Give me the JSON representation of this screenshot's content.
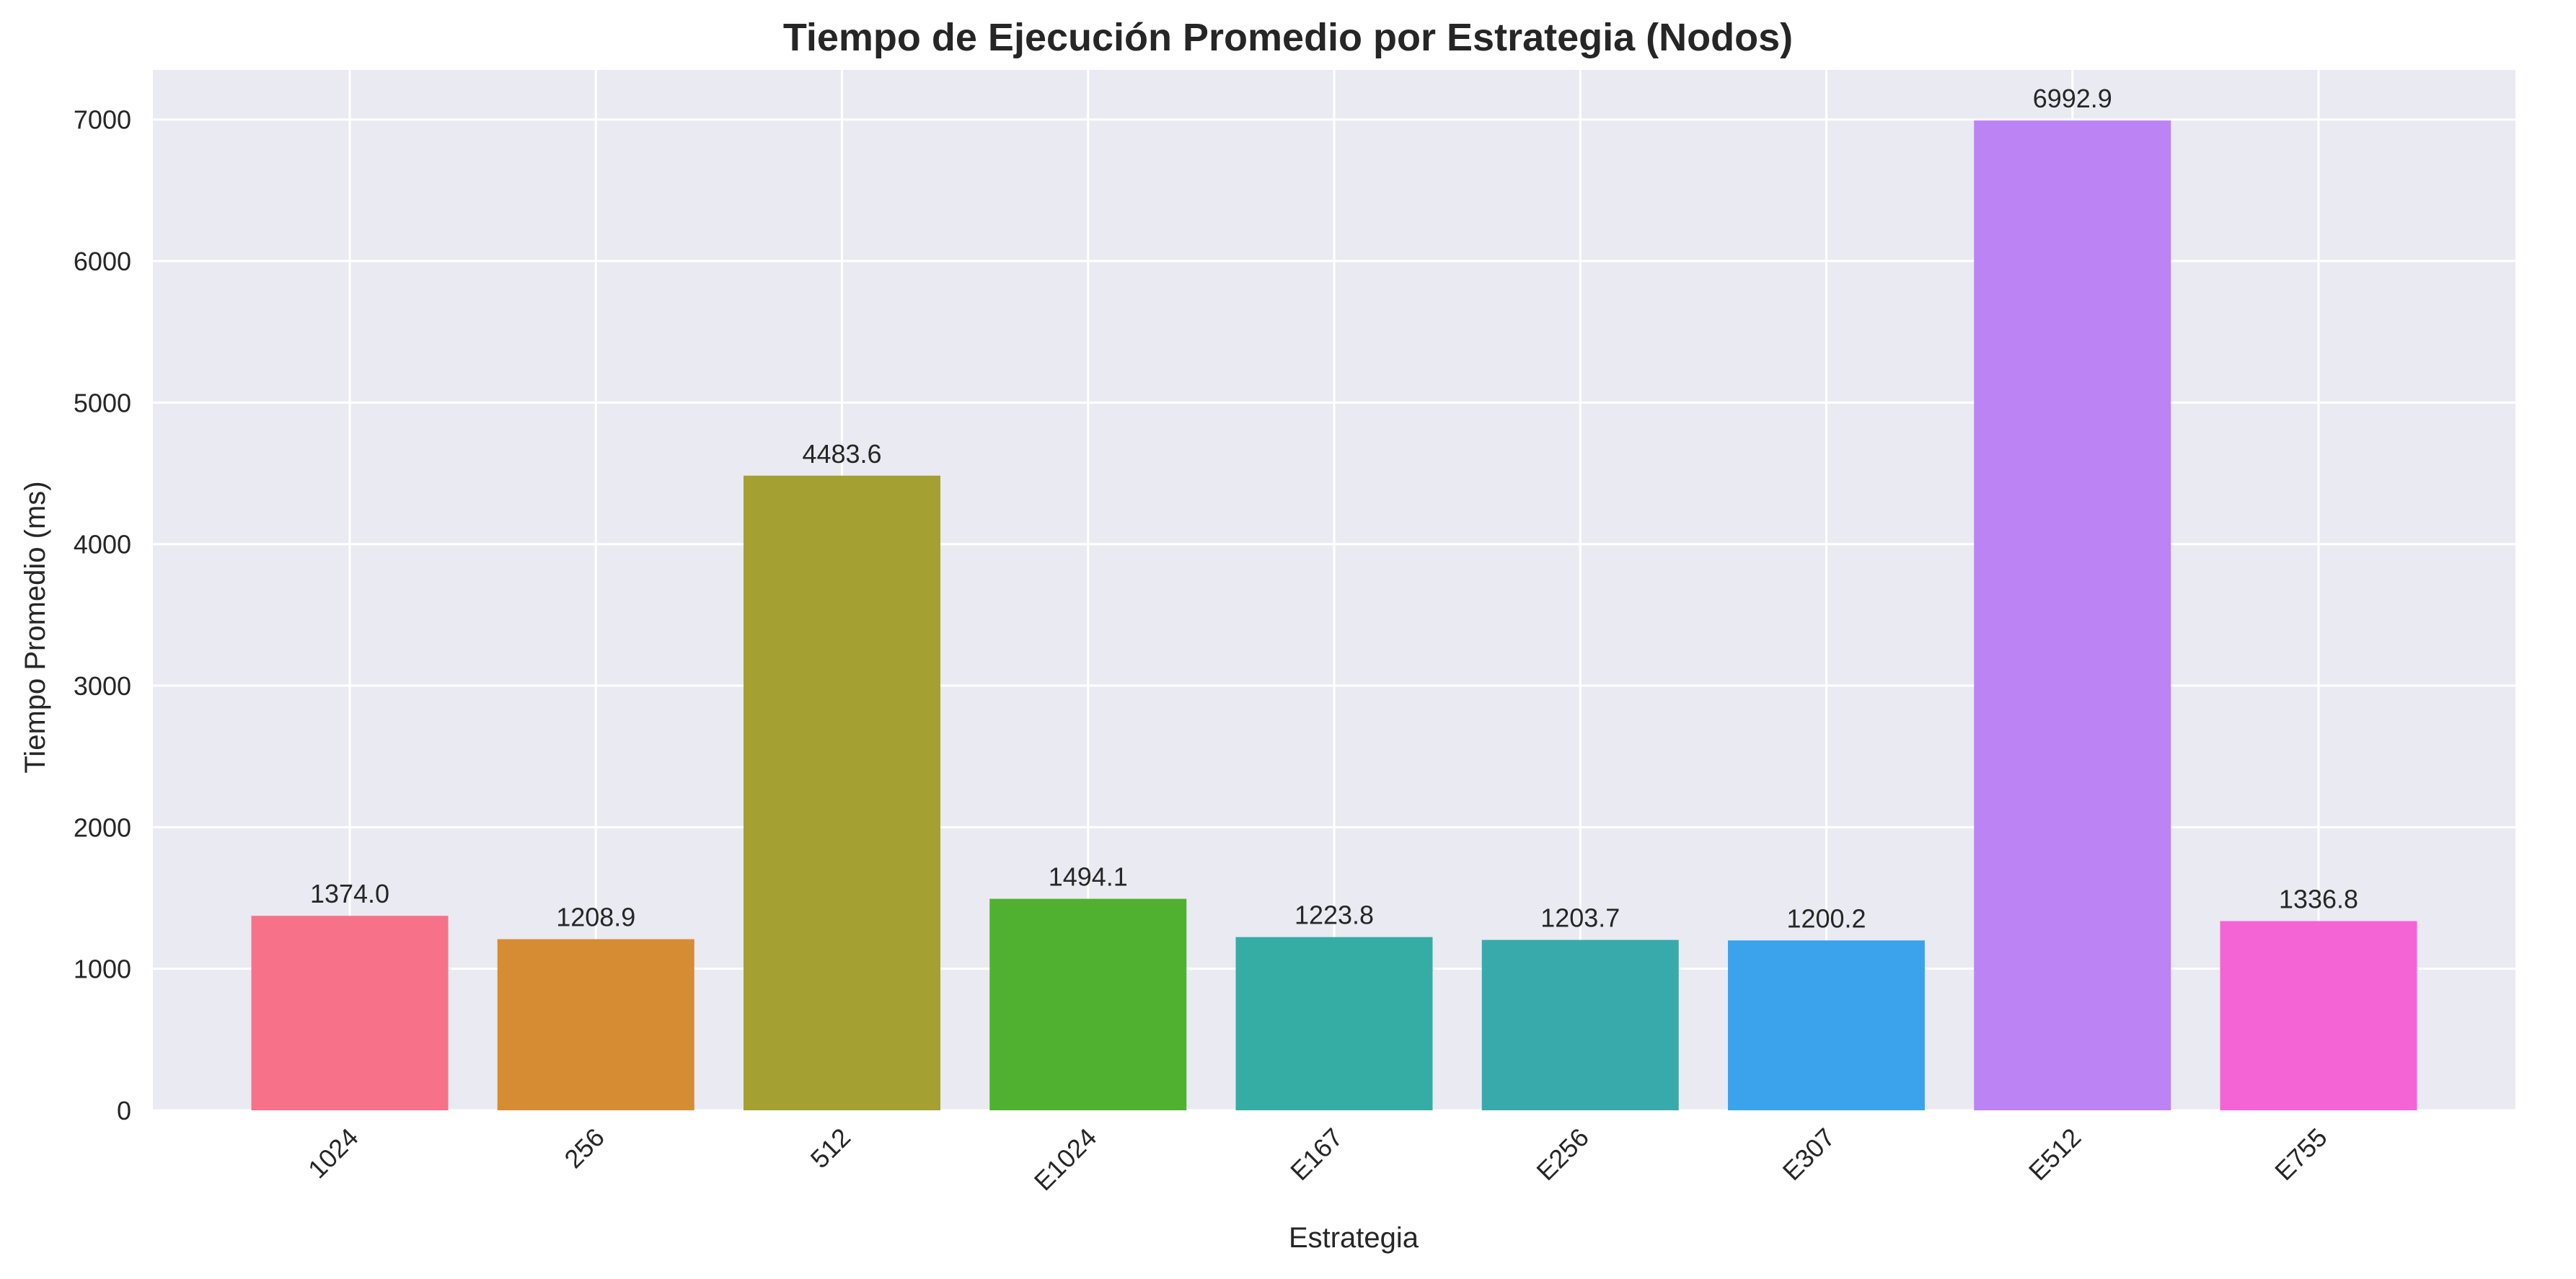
{
  "chart_data": {
    "type": "bar",
    "title": "Tiempo de Ejecución Promedio por Estrategia (Nodos)",
    "xlabel": "Estrategia",
    "ylabel": "Tiempo Promedio (ms)",
    "categories": [
      "1024",
      "256",
      "512",
      "E1024",
      "E167",
      "E256",
      "E307",
      "E512",
      "E755"
    ],
    "values": [
      1374.0,
      1208.9,
      4483.6,
      1494.1,
      1223.8,
      1203.7,
      1200.2,
      6992.9,
      1336.8
    ],
    "value_labels": [
      "1374.0",
      "1208.9",
      "4483.6",
      "1494.1",
      "1223.8",
      "1203.7",
      "1200.2",
      "6992.9",
      "1336.8"
    ],
    "bar_colors": [
      "#f77189",
      "#d58c32",
      "#a4a031",
      "#50b131",
      "#36ada4",
      "#38aaac",
      "#3ba3ec",
      "#bb83f4",
      "#f564d4"
    ],
    "ylim": [
      0,
      7350
    ],
    "yticks": [
      0,
      1000,
      2000,
      3000,
      4000,
      5000,
      6000,
      7000
    ],
    "ytick_labels": [
      "0",
      "1000",
      "2000",
      "3000",
      "4000",
      "5000",
      "6000",
      "7000"
    ],
    "grid": true,
    "background": "#eaeaf2",
    "legend": "none"
  }
}
